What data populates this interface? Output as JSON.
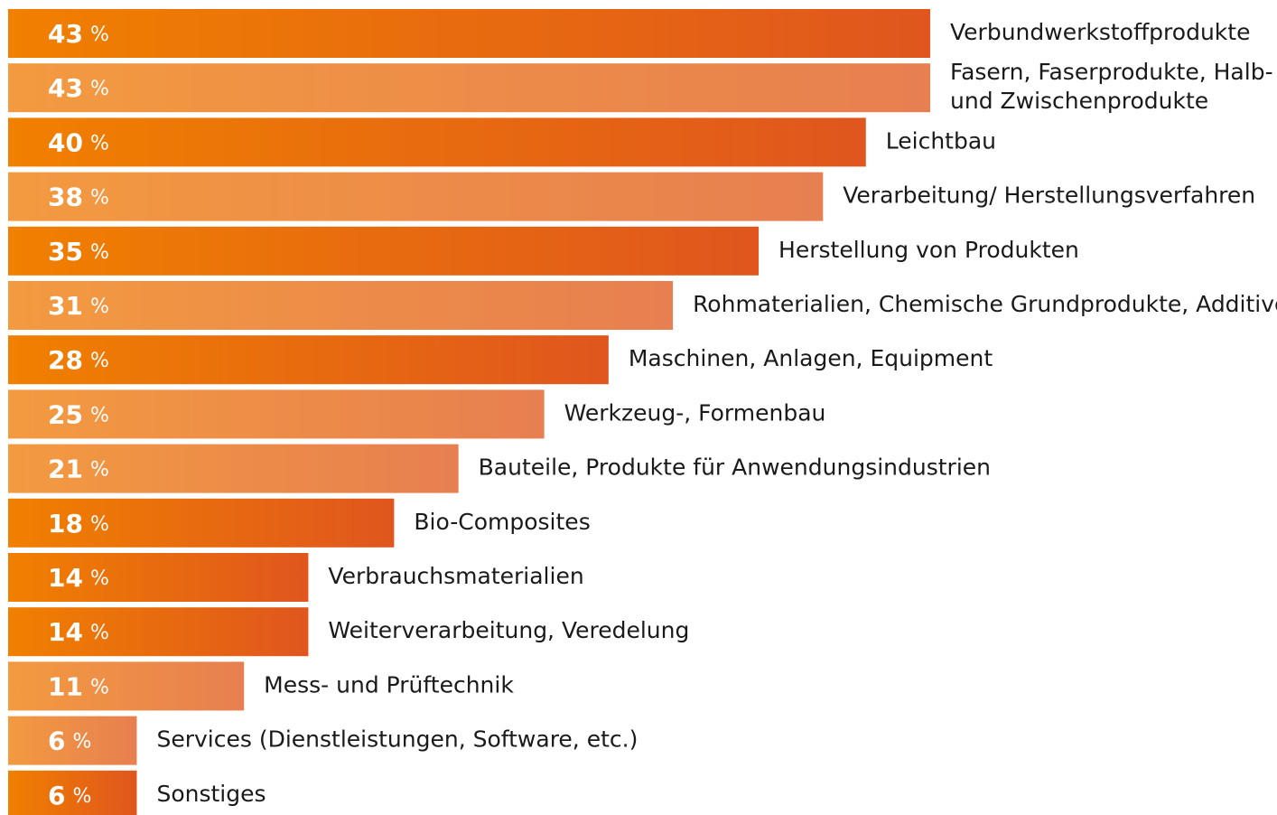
{
  "chart_data": {
    "type": "hbar",
    "categories": [
      "Verbundwerkstoffprodukte",
      "Fasern, Faserprodukte, Halb-\nund Zwischenprodukte",
      "Leichtbau",
      "Verarbeitung/ Herstellungsverfahren",
      "Herstellung von Produkten",
      "Rohmaterialien, Chemische Grundprodukte, Additive",
      "Maschinen, Anlagen, Equipment",
      "Werkzeug-, Formenbau",
      "Bauteile, Produkte für Anwendungsindustrien",
      "Bio-Composites",
      "Verbrauchsmaterialien",
      "Weiterverarbeitung, Veredelung",
      "Mess- und Prüftechnik",
      "Services (Dienstleistungen, Software, etc.)",
      "Sonstiges"
    ],
    "values": [
      43,
      43,
      40,
      38,
      35,
      31,
      28,
      25,
      21,
      18,
      14,
      14,
      11,
      6,
      6
    ],
    "unit": "%",
    "colors": [
      [
        "#f08000",
        "#e0561e"
      ],
      [
        "#f39a40",
        "#e77f50"
      ]
    ],
    "bar_shades": [
      0,
      1,
      0,
      1,
      0,
      1,
      0,
      1,
      1,
      0,
      0,
      0,
      1,
      1,
      0
    ]
  }
}
